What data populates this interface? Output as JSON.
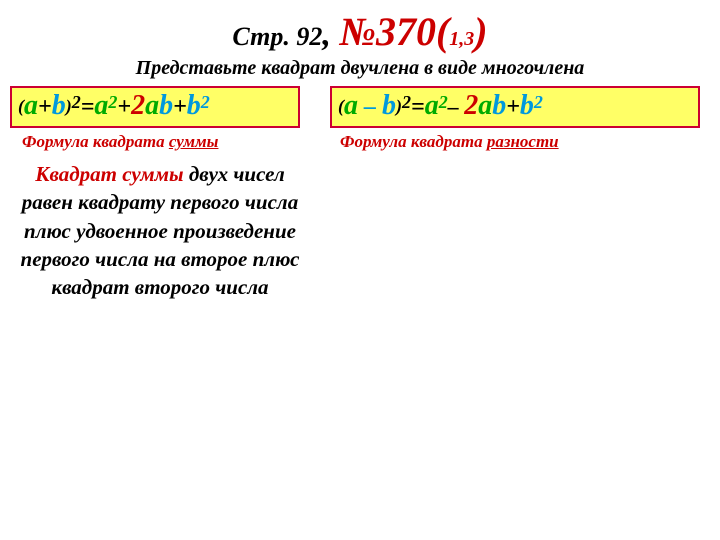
{
  "header": {
    "page_prefix": "Стр. 92",
    "comma": ", ",
    "num_sign": "№370(",
    "sub": "1,3",
    "close": ")"
  },
  "subtitle": "Представьте квадрат двучлена в виде многочлена",
  "formula_sum": {
    "open": "(",
    "a1": "a",
    "plus1": "+",
    "b1": "b",
    "close_sq": ")",
    "sq1": "2",
    "eq": "=",
    "a2": "a",
    "sq2": "2",
    "plus2": "+",
    "two": "2",
    "ab_a": "a",
    "ab_b": "b",
    "plus3": "+",
    "b2": "b",
    "sq3": "2"
  },
  "formula_diff": {
    "open": "(",
    "a1": "a",
    "minus1": " – ",
    "b1": "b",
    "close_sq": ")",
    "sq1": "2",
    "eq": "=",
    "a2": "a",
    "sq2": "2",
    "minus2": "– ",
    "two": "2",
    "ab_a": "a",
    "ab_b": "b",
    "plus3": "+",
    "b2": "b",
    "sq3": "2"
  },
  "caption_sum": {
    "prefix": "Формула квадрата  ",
    "word": "суммы"
  },
  "caption_diff": {
    "prefix": "Формула квадрата ",
    "word": "разности"
  },
  "description": {
    "red1": "Квадрат  суммы",
    "rest": " двух чисел равен  квадрату первого числа плюс удвоенное произведение первого числа на второе  плюс квадрат второго числа"
  },
  "colors": {
    "red": "#cc0000",
    "green": "#00aa00",
    "blue": "#0099dd",
    "yellow_bg": "#ffff66",
    "border": "#cc0033"
  }
}
